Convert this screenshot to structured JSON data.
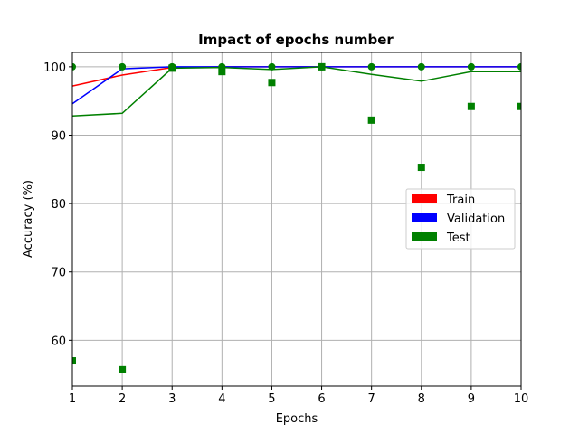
{
  "chart_data": {
    "type": "line",
    "title": "Impact of epochs number",
    "xlabel": "Epochs",
    "ylabel": "Accuracy (%)",
    "x": [
      1,
      2,
      3,
      4,
      5,
      6,
      7,
      8,
      9,
      10
    ],
    "xlim": [
      1,
      10
    ],
    "ylim": [
      53.3,
      102.1
    ],
    "xticks": [
      1,
      2,
      3,
      4,
      5,
      6,
      7,
      8,
      9,
      10
    ],
    "yticks": [
      60,
      70,
      80,
      90,
      100
    ],
    "grid": true,
    "legend_position": "center-right",
    "series": [
      {
        "name": "Train",
        "color": "#ff0000",
        "line": [
          97.2,
          98.8,
          99.9,
          100.0,
          100.0,
          100.0,
          100.0,
          100.0,
          100.0,
          100.0
        ]
      },
      {
        "name": "Validation",
        "color": "#0000ff",
        "line": [
          94.6,
          99.7,
          100.0,
          100.0,
          100.0,
          100.0,
          100.0,
          100.0,
          100.0,
          100.0
        ],
        "circle_markers": [
          100.0,
          100.0,
          100.0,
          100.0,
          100.0,
          100.0,
          100.0,
          100.0,
          100.0,
          100.0
        ]
      },
      {
        "name": "Test",
        "color": "#008000",
        "line": [
          92.8,
          93.2,
          99.8,
          99.9,
          99.6,
          100.0,
          98.9,
          97.9,
          99.3,
          99.3
        ],
        "square_markers": [
          57.0,
          55.7,
          99.8,
          99.3,
          97.7,
          100.0,
          92.2,
          85.3,
          94.2,
          94.2
        ]
      }
    ]
  }
}
